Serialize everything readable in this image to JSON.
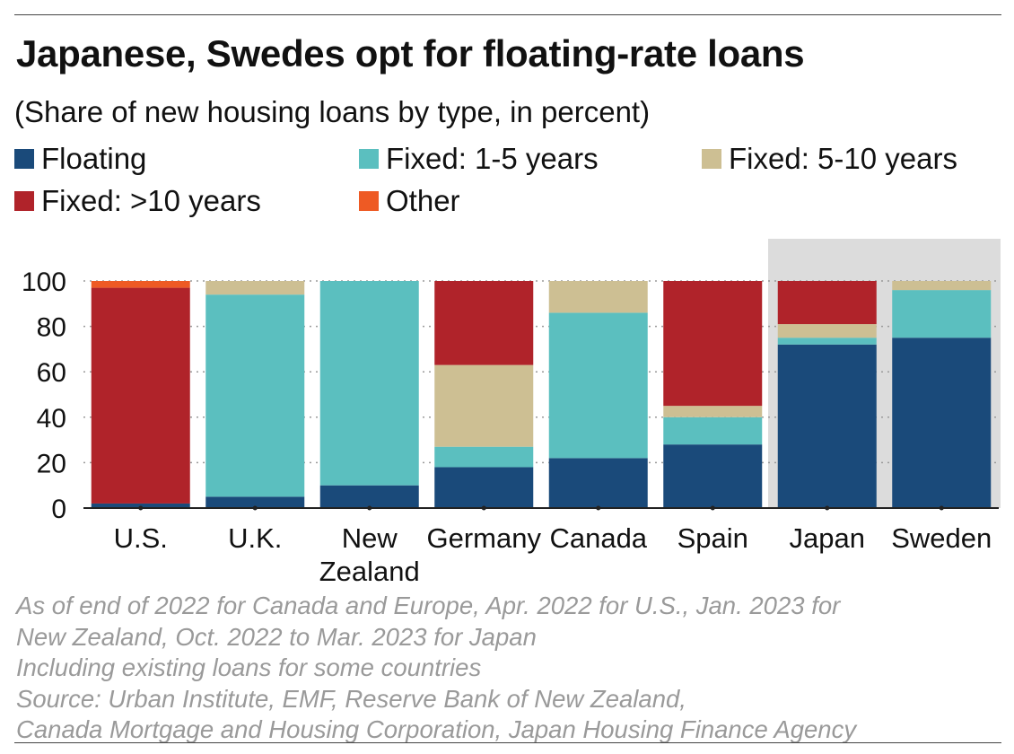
{
  "title": "Japanese, Swedes opt for floating-rate loans",
  "subtitle": "(Share of new housing loans by type, in percent)",
  "legend": [
    {
      "label": "Floating",
      "color": "#1a4a7a"
    },
    {
      "label": "Fixed: 1-5 years",
      "color": "#5bbfbf"
    },
    {
      "label": "Fixed: 5-10 years",
      "color": "#cdbf93"
    },
    {
      "label": "Fixed: >10 years",
      "color": "#b0232a"
    },
    {
      "label": "Other",
      "color": "#ee5a24"
    }
  ],
  "notes": [
    "As of end of 2022 for Canada and Europe, Apr. 2022 for U.S., Jan. 2023 for",
    "New Zealand, Oct. 2022 to Mar. 2023 for Japan",
    "Including existing loans for some countries",
    "Source: Urban Institute, EMF, Reserve Bank of New Zealand,",
    "Canada Mortgage and Housing Corporation, Japan Housing Finance Agency"
  ],
  "chart_data": {
    "type": "bar",
    "stacked": true,
    "categories": [
      "U.S.",
      "U.K.",
      "New Zealand",
      "Germany",
      "Canada",
      "Spain",
      "Japan",
      "Sweden"
    ],
    "category_labels": [
      [
        "U.S."
      ],
      [
        "U.K."
      ],
      [
        "New",
        "Zealand"
      ],
      [
        "Germany"
      ],
      [
        "Canada"
      ],
      [
        "Spain"
      ],
      [
        "Japan"
      ],
      [
        "Sweden"
      ]
    ],
    "series": [
      {
        "name": "Floating",
        "color": "#1a4a7a",
        "values": [
          2,
          5,
          10,
          18,
          22,
          28,
          72,
          75
        ]
      },
      {
        "name": "Fixed: 1-5 years",
        "color": "#5bbfbf",
        "values": [
          0,
          89,
          90,
          9,
          64,
          12,
          3,
          21
        ]
      },
      {
        "name": "Fixed: 5-10 years",
        "color": "#cdbf93",
        "values": [
          0,
          6,
          0,
          36,
          14,
          5,
          6,
          4
        ]
      },
      {
        "name": "Fixed: >10 years",
        "color": "#b0232a",
        "values": [
          95,
          0,
          0,
          37,
          0,
          55,
          19,
          0
        ]
      },
      {
        "name": "Other",
        "color": "#ee5a24",
        "values": [
          3,
          0,
          0,
          0,
          0,
          0,
          0,
          0
        ]
      }
    ],
    "highlighted_categories": [
      "Japan",
      "Sweden"
    ],
    "highlight_color": "#dcdcdc",
    "ylim": [
      0,
      100
    ],
    "yticks": [
      0,
      20,
      40,
      60,
      80,
      100
    ],
    "grid": true,
    "xlabel": "",
    "ylabel": ""
  }
}
